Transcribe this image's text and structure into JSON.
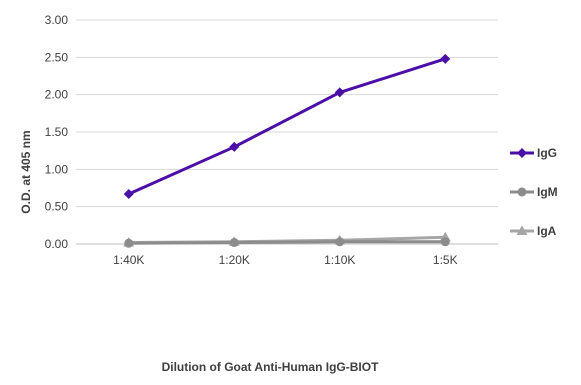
{
  "chart_data": {
    "type": "line",
    "title": "",
    "xlabel": "Dilution of Goat Anti-Human IgG-BIOT",
    "ylabel": "O.D. at 405 nm",
    "categories": [
      "1:40K",
      "1:20K",
      "1:10K",
      "1:5K"
    ],
    "ylim": [
      0,
      3
    ],
    "yticks": [
      "0.00",
      "0.50",
      "1.00",
      "1.50",
      "2.00",
      "2.50",
      "3.00"
    ],
    "grid": true,
    "legend_position": "right",
    "series": [
      {
        "name": "IgG",
        "values": [
          0.67,
          1.3,
          2.03,
          2.48
        ],
        "color": "#4b0fa8",
        "marker": "diamond"
      },
      {
        "name": "IgM",
        "values": [
          0.01,
          0.02,
          0.03,
          0.03
        ],
        "color": "#8c8c8c",
        "marker": "circle"
      },
      {
        "name": "IgA",
        "values": [
          0.02,
          0.03,
          0.05,
          0.09
        ],
        "color": "#a6a6a6",
        "marker": "triangle"
      }
    ]
  }
}
